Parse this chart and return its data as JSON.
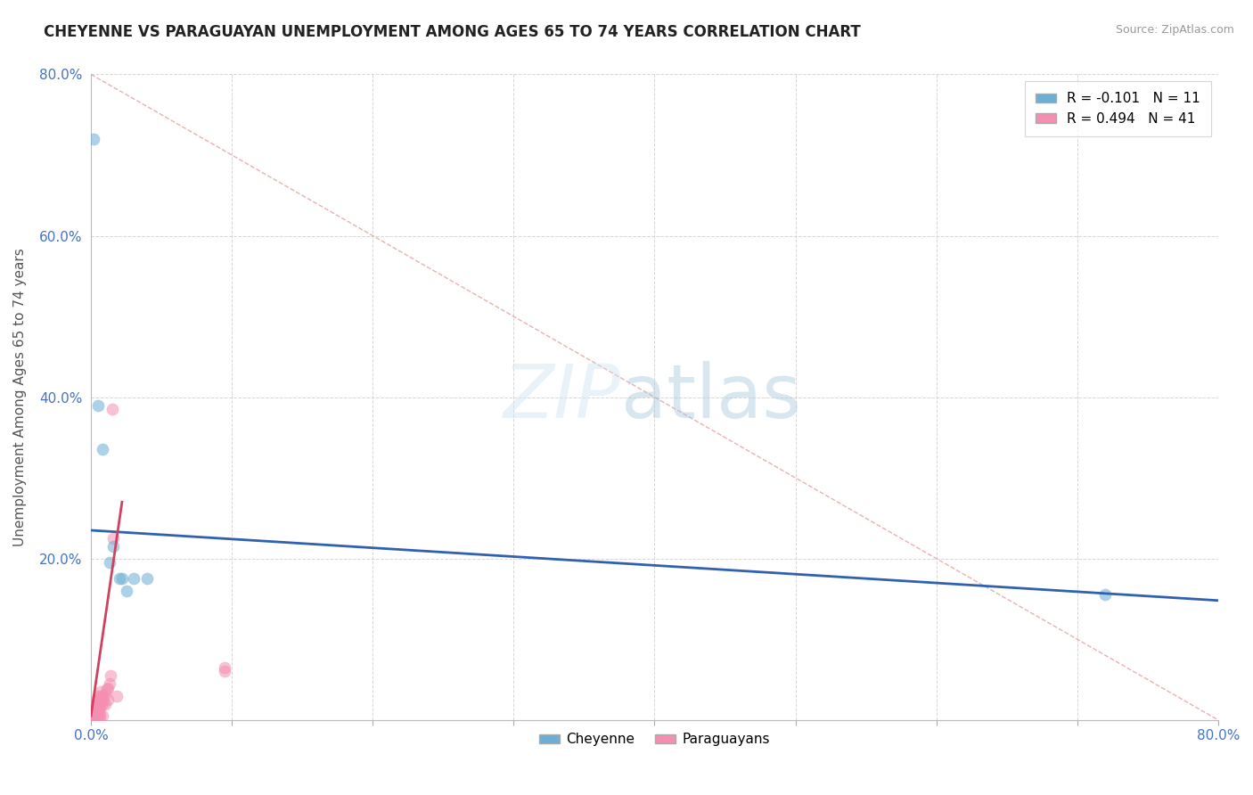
{
  "title": "CHEYENNE VS PARAGUAYAN UNEMPLOYMENT AMONG AGES 65 TO 74 YEARS CORRELATION CHART",
  "source": "Source: ZipAtlas.com",
  "ylabel": "Unemployment Among Ages 65 to 74 years",
  "xlim": [
    0.0,
    0.8
  ],
  "ylim": [
    0.0,
    0.8
  ],
  "xticks": [
    0.0,
    0.1,
    0.2,
    0.3,
    0.4,
    0.5,
    0.6,
    0.7,
    0.8
  ],
  "xticklabels": [
    "0.0%",
    "",
    "",
    "",
    "",
    "",
    "",
    "",
    "80.0%"
  ],
  "yticks": [
    0.0,
    0.2,
    0.4,
    0.6,
    0.8
  ],
  "yticklabels": [
    "",
    "20.0%",
    "40.0%",
    "60.0%",
    "80.0%"
  ],
  "cheyenne_color": "#6baed6",
  "paraguayan_color": "#f48fb1",
  "cheyenne_R": -0.101,
  "cheyenne_N": 11,
  "paraguayan_R": 0.494,
  "paraguayan_N": 41,
  "cheyenne_line_color": "#3060b0",
  "paraguayan_line_color": "#d04060",
  "diagonal_color": "#e09090",
  "background_color": "#ffffff",
  "grid_color": "#cccccc",
  "cheyenne_line_x": [
    0.0,
    0.8
  ],
  "cheyenne_line_y": [
    0.235,
    0.148
  ],
  "paraguayan_line_x": [
    0.0,
    0.022
  ],
  "paraguayan_line_y": [
    0.005,
    0.27
  ],
  "cheyenne_points": [
    [
      0.002,
      0.72
    ],
    [
      0.005,
      0.39
    ],
    [
      0.008,
      0.335
    ],
    [
      0.013,
      0.195
    ],
    [
      0.016,
      0.215
    ],
    [
      0.02,
      0.175
    ],
    [
      0.022,
      0.175
    ],
    [
      0.025,
      0.16
    ],
    [
      0.03,
      0.175
    ],
    [
      0.04,
      0.175
    ],
    [
      0.72,
      0.155
    ]
  ],
  "paraguayan_points": [
    [
      0.001,
      0.002
    ],
    [
      0.002,
      0.002
    ],
    [
      0.002,
      0.005
    ],
    [
      0.003,
      0.003
    ],
    [
      0.003,
      0.008
    ],
    [
      0.003,
      0.012
    ],
    [
      0.003,
      0.02
    ],
    [
      0.004,
      0.005
    ],
    [
      0.004,
      0.01
    ],
    [
      0.004,
      0.015
    ],
    [
      0.004,
      0.022
    ],
    [
      0.004,
      0.025
    ],
    [
      0.005,
      0.003
    ],
    [
      0.005,
      0.008
    ],
    [
      0.005,
      0.015
    ],
    [
      0.005,
      0.02
    ],
    [
      0.005,
      0.025
    ],
    [
      0.005,
      0.03
    ],
    [
      0.006,
      0.003
    ],
    [
      0.006,
      0.008
    ],
    [
      0.006,
      0.015
    ],
    [
      0.006,
      0.02
    ],
    [
      0.007,
      0.025
    ],
    [
      0.007,
      0.03
    ],
    [
      0.007,
      0.035
    ],
    [
      0.008,
      0.005
    ],
    [
      0.008,
      0.02
    ],
    [
      0.008,
      0.03
    ],
    [
      0.009,
      0.025
    ],
    [
      0.01,
      0.02
    ],
    [
      0.01,
      0.032
    ],
    [
      0.011,
      0.038
    ],
    [
      0.012,
      0.025
    ],
    [
      0.012,
      0.04
    ],
    [
      0.013,
      0.045
    ],
    [
      0.014,
      0.055
    ],
    [
      0.015,
      0.385
    ],
    [
      0.016,
      0.225
    ],
    [
      0.018,
      0.03
    ],
    [
      0.095,
      0.06
    ],
    [
      0.095,
      0.065
    ]
  ]
}
